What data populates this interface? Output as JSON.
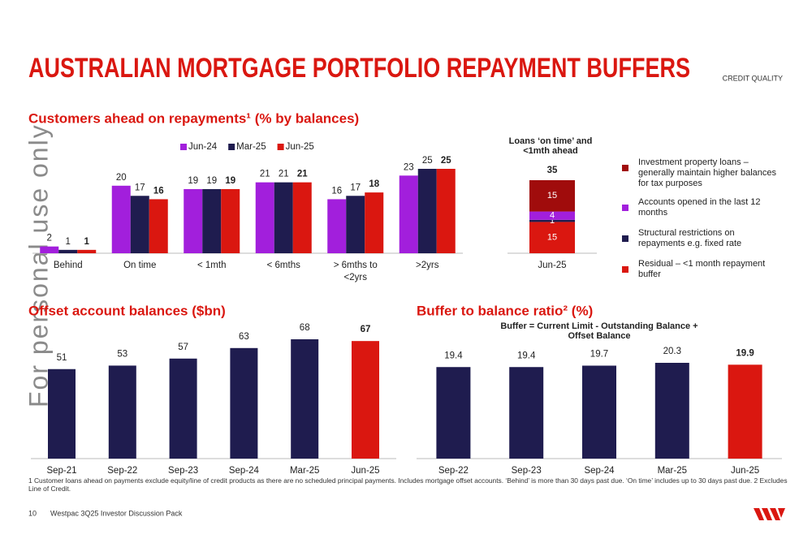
{
  "title": "AUSTRALIAN MORTGAGE PORTFOLIO REPAYMENT BUFFERS",
  "section": "CREDIT QUALITY",
  "watermark": "For personal use only",
  "footnote": "1 Customer loans ahead on payments exclude equity/line of credit products as there are no scheduled principal payments. Includes mortgage offset accounts. ‘Behind’ is more than 30 days past due. ‘On time’ includes up to 30 days past due. 2 Excludes Line of Credit.",
  "page_number": "10",
  "footer": "Westpac 3Q25 Investor Discussion Pack",
  "chart_data": [
    {
      "type": "bar",
      "title": "Customers ahead on repayments¹ (% by balances)",
      "categories": [
        "Behind",
        "On time",
        "< 1mth",
        "< 6mths",
        "> 6mths to <2yrs",
        ">2yrs"
      ],
      "series": [
        {
          "name": "Jun-24",
          "color": "#a21fdc",
          "values": [
            2,
            20,
            19,
            21,
            16,
            23
          ]
        },
        {
          "name": "Mar-25",
          "color": "#1f1c4f",
          "values": [
            1,
            17,
            19,
            21,
            17,
            25
          ]
        },
        {
          "name": "Jun-25",
          "color": "#da1710",
          "values": [
            1,
            16,
            19,
            21,
            18,
            25
          ]
        }
      ],
      "ylim": [
        0,
        25
      ],
      "legend": "top"
    },
    {
      "type": "bar",
      "stacked": true,
      "title": "Loans ‘on time’ and <1mth ahead",
      "categories": [
        "Jun-25"
      ],
      "totals": [
        35
      ],
      "series": [
        {
          "name": "Investment property loans – generally maintain higher balances for tax purposes",
          "color": "#a00c0c",
          "values": [
            15
          ]
        },
        {
          "name": "Accounts opened in the last 12 months",
          "color": "#a21fdc",
          "values": [
            4
          ]
        },
        {
          "name": "Structural restrictions on repayments e.g. fixed rate",
          "color": "#1f1c4f",
          "values": [
            1
          ]
        },
        {
          "name": "Residual – <1 month repayment buffer",
          "color": "#da1710",
          "values": [
            15
          ]
        }
      ],
      "ylim": [
        0,
        35
      ],
      "legend": "right"
    },
    {
      "type": "bar",
      "title": "Offset account balances ($bn)",
      "categories": [
        "Sep-21",
        "Sep-22",
        "Sep-23",
        "Sep-24",
        "Mar-25",
        "Jun-25"
      ],
      "values": [
        51,
        53,
        57,
        63,
        68,
        67
      ],
      "colors": [
        "#1f1c4f",
        "#1f1c4f",
        "#1f1c4f",
        "#1f1c4f",
        "#1f1c4f",
        "#da1710"
      ],
      "ylim": [
        0,
        70
      ]
    },
    {
      "type": "bar",
      "title": "Buffer to balance ratio² (%)",
      "subtitle": "Buffer = Current Limit - Outstanding Balance + Offset Balance",
      "categories": [
        "Sep-22",
        "Sep-23",
        "Sep-24",
        "Mar-25",
        "Jun-25"
      ],
      "values": [
        19.4,
        19.4,
        19.7,
        20.3,
        19.9
      ],
      "colors": [
        "#1f1c4f",
        "#1f1c4f",
        "#1f1c4f",
        "#1f1c4f",
        "#da1710"
      ],
      "ylim": [
        0,
        21
      ]
    }
  ]
}
